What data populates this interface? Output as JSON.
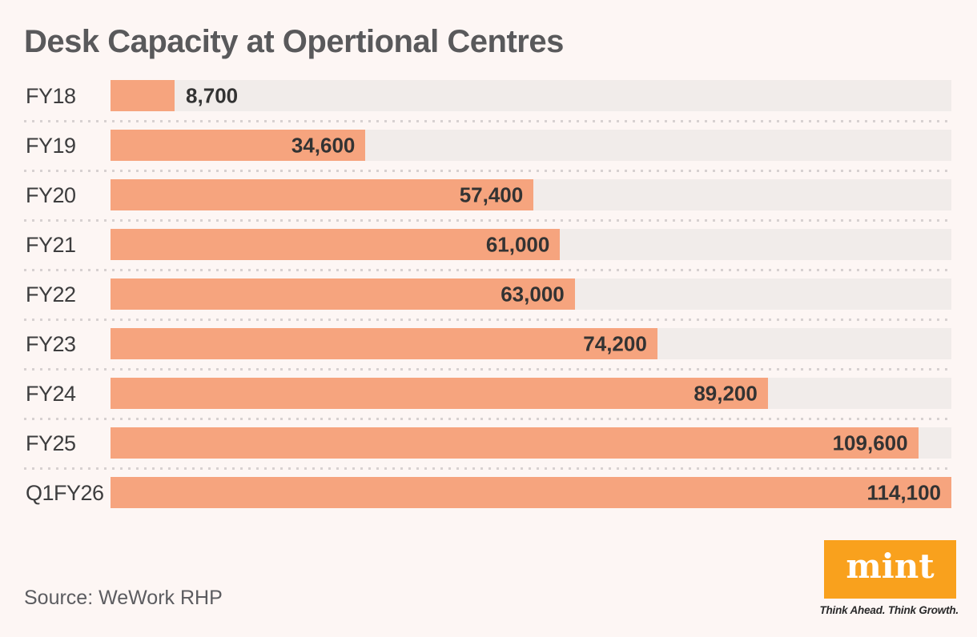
{
  "title": "Desk Capacity at Opertional Centres",
  "source": "Source: WeWork RHP",
  "brand": {
    "logo_text": "mint",
    "tagline": "Think Ahead. Think Growth.",
    "logo_color": "#F9A11D"
  },
  "colors": {
    "background": "#FDF6F4",
    "bar": "#F6A47E",
    "track": "#F1ECEA",
    "title_text": "#59595B",
    "value_text": "#333333",
    "label_text": "#3D3D3E"
  },
  "chart_data": {
    "type": "bar",
    "orientation": "horizontal",
    "title": "Desk Capacity at Opertional Centres",
    "categories": [
      "FY18",
      "FY19",
      "FY20",
      "FY21",
      "FY22",
      "FY23",
      "FY24",
      "FY25",
      "Q1FY26"
    ],
    "values": [
      8700,
      34600,
      57400,
      61000,
      63000,
      74200,
      89200,
      109600,
      114100
    ],
    "value_labels": [
      "8,700",
      "34,600",
      "57,400",
      "61,000",
      "63,000",
      "74,200",
      "89,200",
      "109,600",
      "114,100"
    ],
    "xlabel": "",
    "ylabel": "",
    "xlim": [
      0,
      114100
    ],
    "grid": false,
    "legend": false,
    "value_label_placement": "inside-end, outside-end when bar is short"
  }
}
